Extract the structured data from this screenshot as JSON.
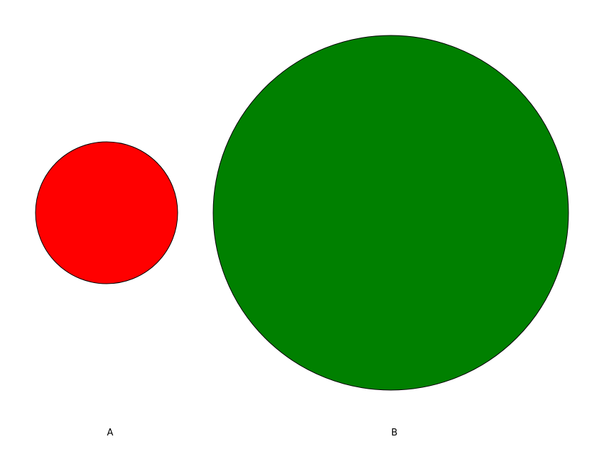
{
  "shapes": [
    {
      "label": "A",
      "fill": "#ff0000",
      "stroke": "#000000"
    },
    {
      "label": "B",
      "fill": "#008000",
      "stroke": "#000000"
    }
  ]
}
